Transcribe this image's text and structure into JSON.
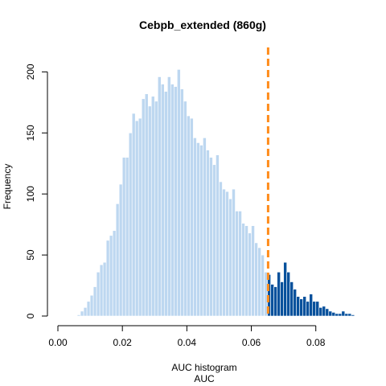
{
  "chart_data": {
    "type": "bar",
    "title": "Cebpb_extended (860g)",
    "xlabel_line1": "AUC histogram",
    "xlabel_line2": "AUC",
    "ylabel": "Frequency",
    "xlim": [
      0.0,
      0.09
    ],
    "ylim": [
      0,
      200
    ],
    "x_ticks": [
      "0.00",
      "0.02",
      "0.04",
      "0.06",
      "0.08"
    ],
    "y_ticks": [
      "0",
      "50",
      "100",
      "150",
      "200"
    ],
    "bin_width": 0.001,
    "threshold": 0.0652,
    "colors": {
      "below_threshold": "#bdd7f0",
      "above_threshold": "#08519c",
      "threshold_line": "#ff8c1a"
    },
    "bins_start": 0.006,
    "values": [
      1,
      4,
      7,
      12,
      17,
      24,
      36,
      42,
      44,
      62,
      66,
      70,
      92,
      108,
      130,
      130,
      150,
      166,
      160,
      162,
      178,
      182,
      172,
      180,
      176,
      196,
      190,
      184,
      196,
      190,
      188,
      202,
      186,
      176,
      164,
      162,
      146,
      142,
      140,
      146,
      136,
      130,
      124,
      132,
      110,
      104,
      102,
      96,
      104,
      86,
      86,
      76,
      74,
      68,
      74,
      60,
      56,
      50,
      36,
      34,
      26,
      24,
      36,
      28,
      44,
      36,
      28,
      22,
      16,
      14,
      16,
      12,
      18,
      12,
      12,
      7,
      8,
      6,
      4,
      3,
      2,
      2,
      4,
      2,
      2,
      1
    ]
  }
}
